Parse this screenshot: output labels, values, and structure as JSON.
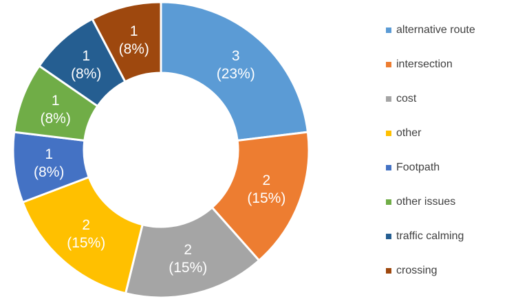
{
  "chart_data": {
    "type": "donut",
    "categories": [
      "alternative route",
      "intersection",
      "cost",
      "other",
      "Footpath",
      "other issues",
      "traffic calming",
      "crossing"
    ],
    "values": [
      3,
      2,
      2,
      2,
      1,
      1,
      1,
      1
    ],
    "value_labels": [
      [
        "3",
        "(23%)"
      ],
      [
        "2",
        "(15%)"
      ],
      [
        "2",
        "(15%)"
      ],
      [
        "2",
        "(15%)"
      ],
      [
        "1",
        "(8%)"
      ],
      [
        "1",
        "(8%)"
      ],
      [
        "1",
        "(8%)"
      ],
      [
        "1",
        "(8%)"
      ]
    ],
    "colors": [
      "#5b9bd5",
      "#ed7d31",
      "#a5a5a5",
      "#ffc000",
      "#4472c4",
      "#70ad47",
      "#255e91",
      "#9e480e"
    ],
    "legend": "right"
  }
}
